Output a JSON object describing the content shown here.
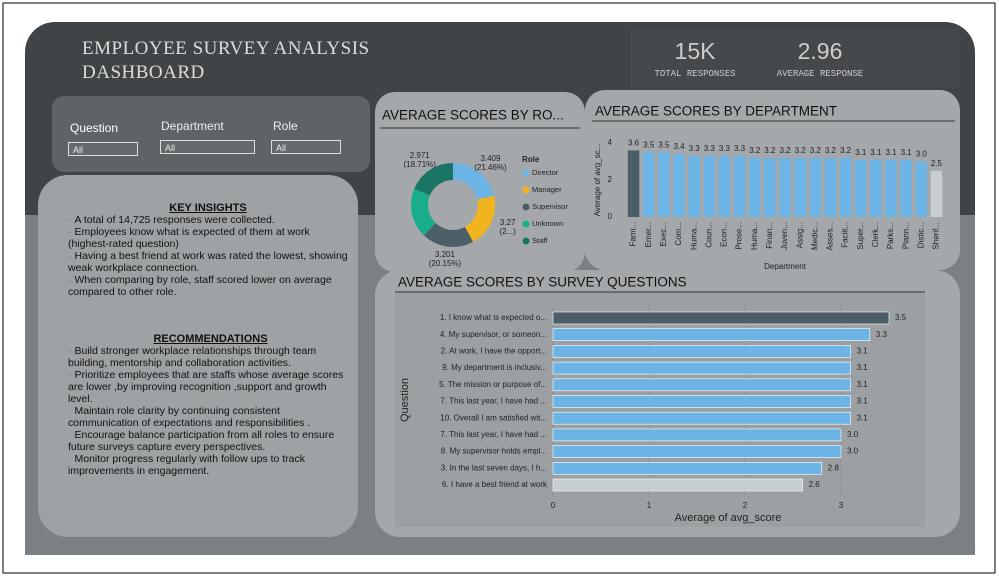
{
  "header": {
    "title": "EMPLOYEE SURVEY ANALYSIS DASHBOARD"
  },
  "kpis": [
    {
      "value": "15K",
      "label": "TOTAL RESPONSES"
    },
    {
      "value": "2.96",
      "label": "AVERAGE RESPONSE"
    }
  ],
  "filters": [
    {
      "label": "Question",
      "value": "All"
    },
    {
      "label": "Department",
      "value": "All"
    },
    {
      "label": "Role",
      "value": "All"
    }
  ],
  "insights": {
    "title": "KEY INSIGHTS",
    "items": [
      "A total of 14,725 responses were collected.",
      "Employees know what is expected of them at work (highest-rated question)",
      "Having a best friend at work was rated the lowest, showing weak workplace connection.",
      "When comparing by role, staff scored lower on average compared to other role."
    ]
  },
  "recommendations": {
    "title": "RECOMMENDATIONS",
    "items": [
      "Build stronger workplace relationships through team building, mentorship and collaboration activities.",
      "Prioritize employees that are staffs whose average scores are lower ,by improving recognition ,support and growth level.",
      "Maintain role clarity by continuing consistent communication of expectations and responsibilities .",
      "Encourage balance participation from all roles to ensure future surveys capture every perspectives.",
      "Monitor progress regularly with follow ups to track improvements in engagement."
    ]
  },
  "chart_data": [
    {
      "type": "donut",
      "title": "AVERAGE SCORES BY RO...",
      "legend_title": "Role",
      "categories": [
        "Director",
        "Manager",
        "Supervisor",
        "Unknown",
        "Staff"
      ],
      "values": [
        3.409,
        3.27,
        3.201,
        3.029,
        2.971
      ],
      "value_labels": [
        "3.409\n(21.46%)",
        "3.27\n(2...)",
        "3.201\n(20.15%)",
        null,
        "2.971\n(18.71%)"
      ],
      "colors": [
        "#6cb4e6",
        "#f2b41e",
        "#4c5f69",
        "#19ad8c",
        "#1b7565"
      ]
    },
    {
      "type": "bar",
      "title": "AVERAGE SCORES BY DEPARTMENT",
      "x_label": "Department",
      "y_label": "Average of avg_sc...",
      "categories": [
        "Fami...",
        "Emer...",
        "Exec...",
        "Com...",
        "Huma...",
        "Coun...",
        "Econ...",
        "Prose...",
        "Huma...",
        "Finan...",
        "Juven...",
        "Assig...",
        "Medic...",
        "Asses...",
        "Faciit...",
        "Super...",
        "Clerk...",
        "Parks...",
        "Plann...",
        "Distic...",
        "Sherif..."
      ],
      "values": [
        3.6,
        3.5,
        3.5,
        3.4,
        3.3,
        3.3,
        3.3,
        3.3,
        3.2,
        3.2,
        3.2,
        3.2,
        3.2,
        3.2,
        3.2,
        3.1,
        3.1,
        3.1,
        3.1,
        3.0,
        2.5
      ],
      "value_labels": [
        "3.6",
        "3.5",
        "3.5",
        "3.4",
        "3.3",
        "3.3",
        "3.3",
        "3.3",
        "3.2",
        "3.2",
        "3.2",
        "3.2",
        "3.2",
        "3.2",
        "3.2",
        "3.1",
        "3.1",
        "3.1",
        "3.1",
        "3.0",
        "2.5"
      ],
      "colors": [
        "#4c5f69",
        "#6cb4e6",
        "#6cb4e6",
        "#6cb4e6",
        "#6cb4e6",
        "#6cb4e6",
        "#6cb4e6",
        "#6cb4e6",
        "#6cb4e6",
        "#6cb4e6",
        "#6cb4e6",
        "#6cb4e6",
        "#6cb4e6",
        "#6cb4e6",
        "#6cb4e6",
        "#6cb4e6",
        "#6cb4e6",
        "#6cb4e6",
        "#6cb4e6",
        "#6cb4e6",
        "#c7ced2"
      ],
      "ylim": [
        0,
        4
      ],
      "yticks": [
        0,
        2,
        4
      ],
      "grid": false
    },
    {
      "type": "hbar",
      "title": "AVERAGE SCORES BY SURVEY QUESTIONS",
      "x_label": "Average of avg_score",
      "y_label": "Question",
      "categories": [
        "1. I know what is expected o...",
        "4. My supervisor, or someon...",
        "2. At work, I have the opport...",
        "9. My department is inclusiv...",
        "5. The mission or purpose of...",
        "7. This last year, I have had ...",
        "10. Overall I am satisfied wit...",
        "7. This last year, I have had ...",
        "8. My supervisor holds empl...",
        "3. In the last seven days, I h...",
        "6. I have a best friend at work"
      ],
      "values": [
        3.5,
        3.3,
        3.1,
        3.1,
        3.1,
        3.1,
        3.1,
        3.0,
        3.0,
        2.8,
        2.6
      ],
      "value_labels": [
        "3.5",
        "3.3",
        "3.1",
        "3.1",
        "3.1",
        "3.1",
        "3.1",
        "3.0",
        "3.0",
        "2.8",
        "2.6"
      ],
      "colors": [
        "#4c5f69",
        "#6cb4e6",
        "#6cb4e6",
        "#6cb4e6",
        "#6cb4e6",
        "#6cb4e6",
        "#6cb4e6",
        "#6cb4e6",
        "#6cb4e6",
        "#6cb4e6",
        "#c7ced2"
      ],
      "xlim": [
        0,
        3.5
      ],
      "xticks": [
        0,
        1,
        2,
        3
      ],
      "grid": true
    }
  ]
}
